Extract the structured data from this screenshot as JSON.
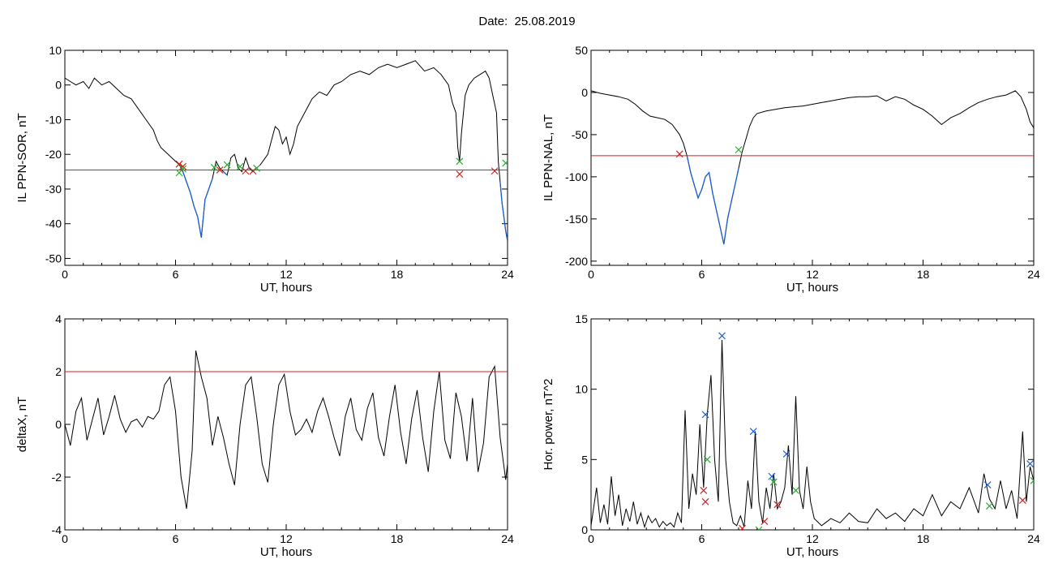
{
  "title": "Date:  25.08.2019",
  "colors": {
    "trace": "#000000",
    "threshold": "#d42020",
    "highlight": "#1a5fd0",
    "marker_red": "#d42020",
    "marker_green": "#22b02a",
    "marker_blue": "#1a5fd0"
  },
  "chart_data": [
    {
      "type": "line",
      "ylabel": "IL PPN-SOR, nT",
      "xlabel": "UT, hours",
      "xlim": [
        0,
        24
      ],
      "ylim": [
        -52,
        10
      ],
      "xticks": [
        0,
        6,
        12,
        18,
        24
      ],
      "yticks": [
        10,
        0,
        -10,
        -20,
        -30,
        -40,
        -50
      ],
      "threshold": -24.5,
      "series": [
        {
          "x": [
            0,
            0.3,
            0.6,
            1,
            1.3,
            1.6,
            2,
            2.4,
            2.8,
            3.2,
            3.6,
            4,
            4.4,
            4.8,
            5,
            5.2,
            5.4,
            5.6,
            5.8,
            6,
            6.2,
            6.4,
            6.6,
            6.8,
            7,
            7.2,
            7.4,
            7.6,
            7.8,
            8,
            8.2,
            8.4,
            8.6,
            8.8,
            9,
            9.2,
            9.4,
            9.6,
            9.8,
            10,
            10.2,
            10.4,
            10.6,
            11,
            11.2,
            11.4,
            11.6,
            11.8,
            12,
            12.2,
            12.4,
            12.6,
            13,
            13.4,
            13.8,
            14.2,
            14.6,
            15,
            15.5,
            16,
            16.5,
            17,
            17.5,
            18,
            18.5,
            19,
            19.5,
            20,
            20.4,
            20.8,
            21,
            21.2,
            21.3,
            21.4,
            21.5,
            21.7,
            21.9,
            22.2,
            22.5,
            22.8,
            23,
            23.2,
            23.4,
            23.5,
            23.6,
            23.7,
            23.8,
            23.9,
            24
          ],
          "y": [
            2,
            1,
            0,
            1,
            -1,
            2,
            0,
            1,
            -1,
            -3,
            -4,
            -7,
            -10,
            -13,
            -16,
            -18,
            -19,
            -20,
            -21,
            -22,
            -23,
            -25,
            -28,
            -31,
            -35,
            -38,
            -44,
            -33,
            -30,
            -27,
            -22,
            -24,
            -25,
            -26,
            -21,
            -20,
            -24,
            -25,
            -21,
            -24,
            -25,
            -24,
            -23,
            -20,
            -16,
            -12,
            -13,
            -17,
            -15,
            -20,
            -17,
            -12,
            -8,
            -4,
            -2,
            -3,
            0,
            1,
            3,
            4,
            3,
            5,
            6,
            5,
            6,
            7,
            4,
            5,
            3,
            0,
            -5,
            -8,
            -18,
            -22,
            -14,
            -3,
            0,
            2,
            3,
            4,
            2,
            -3,
            -8,
            -22,
            -28,
            -34,
            -38,
            -42,
            -45
          ]
        }
      ],
      "markers_red": [
        [
          6.2,
          -22.8
        ],
        [
          6.4,
          -23.5
        ],
        [
          8.4,
          -24.5
        ],
        [
          9.8,
          -24.8
        ],
        [
          10.2,
          -24.8
        ],
        [
          21.4,
          -25.7
        ],
        [
          23.3,
          -24.8
        ]
      ],
      "markers_green": [
        [
          6.2,
          -25.3
        ],
        [
          6.4,
          -24.2
        ],
        [
          8.1,
          -23.8
        ],
        [
          8.8,
          -23
        ],
        [
          9.5,
          -23.5
        ],
        [
          10.4,
          -24
        ],
        [
          21.4,
          -22
        ],
        [
          23.9,
          -22.5
        ]
      ]
    },
    {
      "type": "line",
      "ylabel": "IL PPN-NAL, nT",
      "xlabel": "UT, hours",
      "xlim": [
        0,
        24
      ],
      "ylim": [
        -205,
        50
      ],
      "xticks": [
        0,
        6,
        12,
        18,
        24
      ],
      "yticks": [
        50,
        0,
        -50,
        -100,
        -150,
        -200
      ],
      "threshold": -75,
      "series": [
        {
          "x": [
            0,
            0.5,
            1,
            1.5,
            2,
            2.4,
            2.8,
            3.2,
            3.6,
            4,
            4.4,
            4.8,
            5,
            5.2,
            5.4,
            5.6,
            5.8,
            6,
            6.2,
            6.4,
            6.6,
            6.8,
            7,
            7.2,
            7.4,
            7.6,
            7.8,
            8,
            8.2,
            8.4,
            8.6,
            8.8,
            9,
            9.5,
            10,
            10.5,
            11,
            11.5,
            12,
            12.5,
            13,
            13.5,
            14,
            14.5,
            15,
            15.5,
            16,
            16.5,
            17,
            17.5,
            18,
            18.5,
            19,
            19.5,
            20,
            20.5,
            21,
            21.5,
            22,
            22.5,
            23,
            23.3,
            23.6,
            23.8,
            24
          ],
          "y": [
            2,
            -1,
            -3,
            -5,
            -8,
            -14,
            -22,
            -28,
            -30,
            -32,
            -38,
            -50,
            -60,
            -75,
            -95,
            -110,
            -125,
            -115,
            -100,
            -95,
            -120,
            -140,
            -160,
            -180,
            -150,
            -130,
            -110,
            -90,
            -70,
            -55,
            -40,
            -30,
            -25,
            -22,
            -20,
            -18,
            -17,
            -16,
            -14,
            -12,
            -10,
            -8,
            -6,
            -5,
            -5,
            -4,
            -10,
            -5,
            -8,
            -15,
            -20,
            -28,
            -38,
            -30,
            -25,
            -18,
            -12,
            -8,
            -5,
            -3,
            2,
            -5,
            -20,
            -35,
            -42
          ]
        }
      ],
      "markers_red": [
        [
          4.8,
          -73
        ]
      ],
      "markers_green": [
        [
          8.0,
          -68
        ]
      ]
    },
    {
      "type": "line",
      "ylabel": "deltaX, nT",
      "xlabel": "UT, hours",
      "xlim": [
        0,
        24
      ],
      "ylim": [
        -4,
        4
      ],
      "xticks": [
        0,
        6,
        12,
        18,
        24
      ],
      "yticks": [
        4,
        2,
        0,
        -2,
        -4
      ],
      "threshold": 2,
      "series": [
        {
          "x": [
            0,
            0.3,
            0.6,
            0.9,
            1.2,
            1.5,
            1.8,
            2.1,
            2.4,
            2.7,
            3,
            3.3,
            3.6,
            3.9,
            4.2,
            4.5,
            4.8,
            5.1,
            5.4,
            5.7,
            6,
            6.3,
            6.6,
            6.9,
            7.1,
            7.4,
            7.7,
            8,
            8.3,
            8.6,
            8.9,
            9.2,
            9.5,
            9.8,
            10.1,
            10.4,
            10.7,
            11,
            11.3,
            11.6,
            11.9,
            12.2,
            12.5,
            12.8,
            13.1,
            13.4,
            13.7,
            14,
            14.3,
            14.6,
            14.9,
            15.2,
            15.5,
            15.8,
            16.1,
            16.4,
            16.7,
            17,
            17.3,
            17.6,
            17.9,
            18.2,
            18.5,
            18.8,
            19.1,
            19.4,
            19.7,
            20,
            20.3,
            20.6,
            20.9,
            21.2,
            21.5,
            21.8,
            22.1,
            22.4,
            22.7,
            23,
            23.3,
            23.6,
            23.9,
            24
          ],
          "y": [
            0,
            -0.8,
            0.5,
            1,
            -0.6,
            0.2,
            1,
            -0.4,
            0.3,
            1.1,
            0.2,
            -0.3,
            0.1,
            0.2,
            -0.1,
            0.3,
            0.2,
            0.5,
            1.5,
            1.8,
            0.5,
            -2,
            -3.2,
            -1,
            2.8,
            1.8,
            1,
            -0.8,
            0.3,
            -0.5,
            -1.5,
            -2.3,
            0,
            1.5,
            1.8,
            0.3,
            -1.5,
            -2.2,
            0,
            1.5,
            1.9,
            0.5,
            -0.4,
            -0.2,
            0.2,
            -0.3,
            0.5,
            1,
            0.3,
            -0.5,
            -1.2,
            0.3,
            1,
            -0.2,
            -0.6,
            0.6,
            1.2,
            -0.5,
            -1.2,
            0.3,
            1.5,
            -0.3,
            -1.5,
            0.2,
            1.3,
            -0.5,
            -1.8,
            0.5,
            2,
            -0.6,
            -1.3,
            1.2,
            0.3,
            -1.4,
            1,
            -1.8,
            -0.7,
            1.8,
            2.2,
            -0.5,
            -2.1,
            -1.5
          ]
        }
      ]
    },
    {
      "type": "line",
      "ylabel": "Hor. power, nT^2",
      "xlabel": "UT, hours",
      "xlim": [
        0,
        24
      ],
      "ylim": [
        0,
        15
      ],
      "xticks": [
        0,
        6,
        12,
        18,
        24
      ],
      "yticks": [
        15,
        10,
        5,
        0
      ],
      "series": [
        {
          "x": [
            0,
            0.3,
            0.5,
            0.7,
            0.9,
            1.1,
            1.3,
            1.5,
            1.7,
            1.9,
            2.1,
            2.3,
            2.5,
            2.7,
            2.9,
            3.1,
            3.3,
            3.5,
            3.7,
            3.9,
            4.1,
            4.3,
            4.5,
            4.7,
            4.9,
            5.1,
            5.3,
            5.5,
            5.7,
            5.9,
            6.1,
            6.3,
            6.5,
            6.7,
            6.9,
            7.1,
            7.3,
            7.5,
            7.7,
            7.9,
            8.1,
            8.3,
            8.5,
            8.7,
            8.9,
            9.1,
            9.3,
            9.5,
            9.7,
            9.9,
            10.1,
            10.3,
            10.5,
            10.7,
            10.9,
            11.1,
            11.3,
            11.5,
            11.7,
            11.9,
            12.1,
            12.5,
            13,
            13.5,
            14,
            14.5,
            15,
            15.5,
            16,
            16.5,
            17,
            17.5,
            18,
            18.5,
            19,
            19.5,
            20,
            20.5,
            21,
            21.3,
            21.6,
            21.9,
            22.2,
            22.5,
            22.8,
            23.1,
            23.4,
            23.6,
            23.8,
            24
          ],
          "y": [
            0.3,
            3,
            0.5,
            1.8,
            0.4,
            3.8,
            1,
            2.5,
            0.3,
            1.5,
            0.6,
            2,
            0.4,
            1.2,
            0.2,
            1,
            0.5,
            0.8,
            0.2,
            0.6,
            0.3,
            0.5,
            0.2,
            1.2,
            0.5,
            8.5,
            1.5,
            4,
            2.5,
            7.5,
            3,
            8.2,
            11,
            5,
            2,
            13.5,
            5,
            2,
            0.5,
            0.3,
            1,
            0.2,
            3.5,
            1.5,
            7,
            2,
            0.5,
            3,
            1.5,
            4,
            1.5,
            2,
            3,
            6,
            2.5,
            9.5,
            2.8,
            1.5,
            4.5,
            2,
            0.8,
            0.3,
            0.8,
            0.5,
            1.2,
            0.6,
            0.5,
            1.5,
            0.8,
            1.2,
            0.6,
            1.5,
            1,
            2.5,
            1,
            2,
            1.5,
            3,
            1.2,
            4,
            2.2,
            1.5,
            3.5,
            1.5,
            2.8,
            0.8,
            7,
            2,
            4.5,
            3.5
          ]
        }
      ],
      "markers_blue": [
        [
          6.2,
          8.2
        ],
        [
          7.1,
          13.8
        ],
        [
          8.8,
          7.0
        ],
        [
          9.8,
          3.8
        ],
        [
          10.6,
          5.4
        ],
        [
          21.5,
          3.2
        ],
        [
          23.8,
          4.7
        ]
      ],
      "markers_red": [
        [
          6.1,
          2.8
        ],
        [
          6.2,
          2.0
        ],
        [
          8.2,
          0.1
        ],
        [
          9.4,
          0.6
        ],
        [
          10.1,
          1.8
        ],
        [
          23.4,
          2.1
        ]
      ],
      "markers_green": [
        [
          6.3,
          5.0
        ],
        [
          9.1,
          0.0
        ],
        [
          9.9,
          3.4
        ],
        [
          11.1,
          2.8
        ],
        [
          21.6,
          1.7
        ],
        [
          24,
          3.5
        ]
      ]
    }
  ]
}
